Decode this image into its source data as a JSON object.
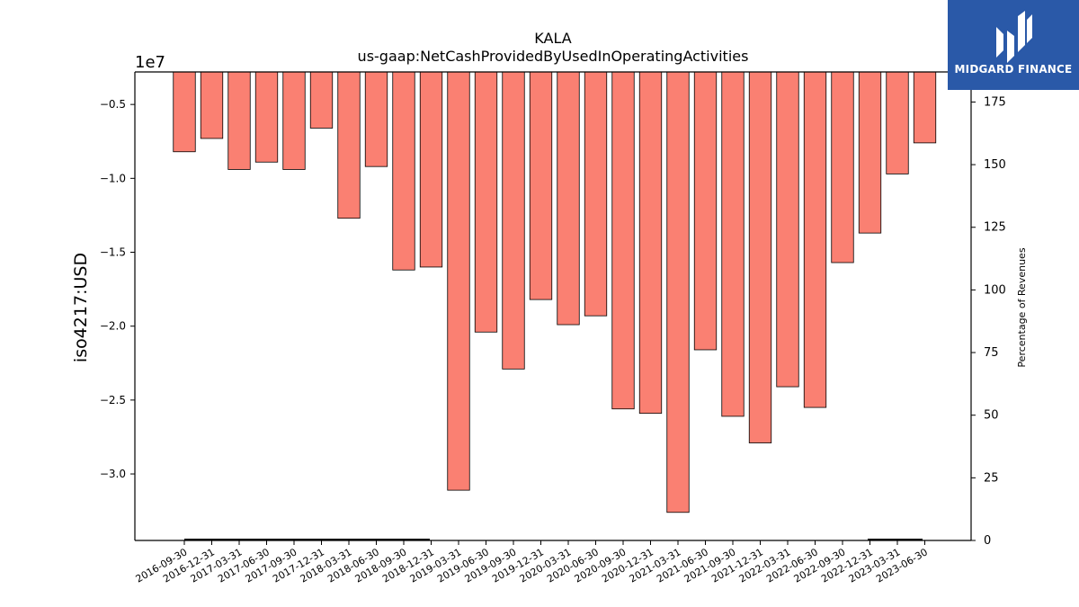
{
  "chart_data": {
    "type": "bar",
    "title": "KALA",
    "subtitle": "us-gaap:NetCashProvidedByUsedInOperatingActivities",
    "ylabel": "iso4217:USD",
    "y2label": "Percentage of Revenues",
    "offset_text": "1e7",
    "bar_color": "#fa8072",
    "categories": [
      "2016-09-30",
      "2016-12-31",
      "2017-03-31",
      "2017-06-30",
      "2017-09-30",
      "2017-12-31",
      "2018-03-31",
      "2018-06-30",
      "2018-09-30",
      "2018-12-31",
      "2019-03-31",
      "2019-06-30",
      "2019-09-30",
      "2019-12-31",
      "2020-03-31",
      "2020-06-30",
      "2020-09-30",
      "2020-12-31",
      "2021-03-31",
      "2021-06-30",
      "2021-09-30",
      "2021-12-31",
      "2022-03-31",
      "2022-06-30",
      "2022-09-30",
      "2022-12-31",
      "2023-03-31",
      "2023-06-30"
    ],
    "values": [
      -8200000,
      -7300000,
      -9400000,
      -8900000,
      -9400000,
      -6600000,
      -12700000,
      -9200000,
      -16200000,
      -16000000,
      -31100000,
      -20400000,
      -22900000,
      -18200000,
      -19900000,
      -19300000,
      -25600000,
      -25900000,
      -32600000,
      -21600000,
      -26100000,
      -27900000,
      -24100000,
      -25500000,
      -15700000,
      -13700000,
      -9700000,
      -7600000
    ],
    "yticks": [
      -0.5,
      -1.0,
      -1.5,
      -2.0,
      -2.5,
      -3.0
    ],
    "ytick_labels": [
      "−0.5",
      "−1.0",
      "−1.5",
      "−2.0",
      "−2.5",
      "−3.0"
    ],
    "ylim": [
      -34500000,
      -2800000
    ],
    "y2ticks": [
      "0",
      "25",
      "50",
      "75",
      "100",
      "125",
      "150",
      "175"
    ],
    "y2lim": [
      0,
      187
    ]
  },
  "logo": {
    "text": "MIDGARD FINANCE"
  }
}
